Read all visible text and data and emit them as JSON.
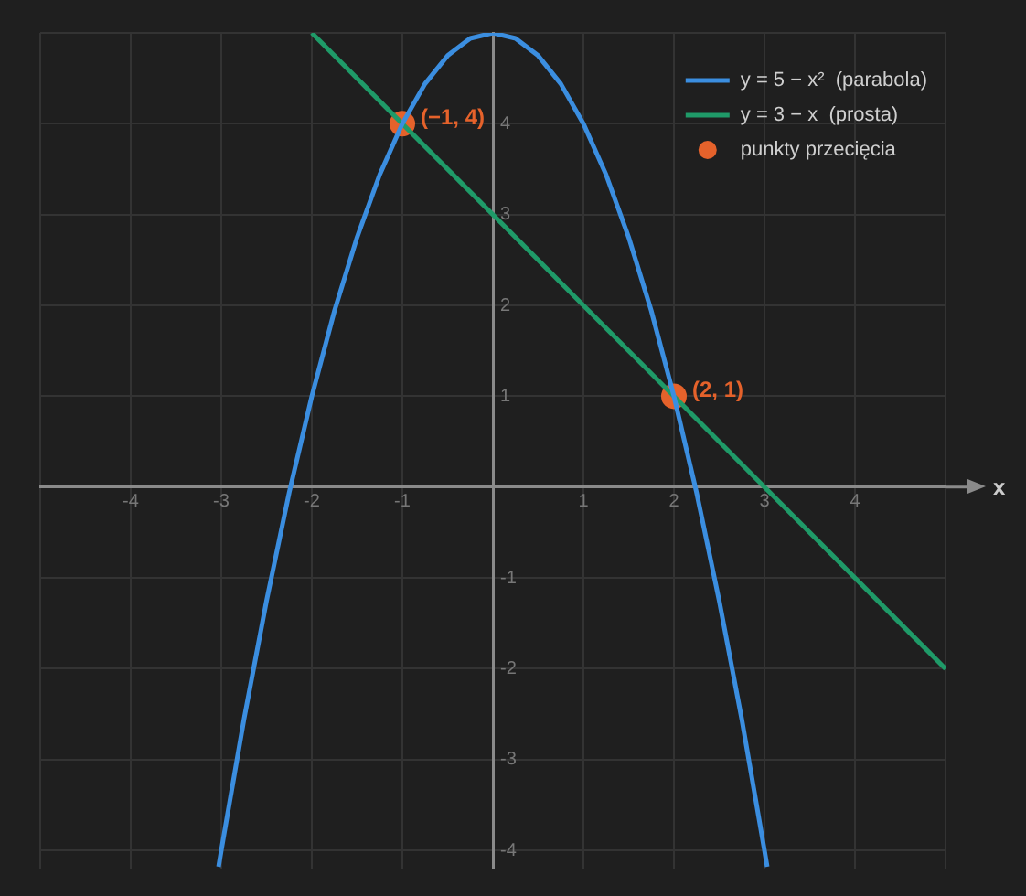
{
  "chart_data": {
    "type": "line",
    "xlabel": "x",
    "series": [
      {
        "name": "y = 5 − x²  (parabola)",
        "color": "#3b8ee0",
        "marker": "none",
        "x": [
          -3.03,
          -3,
          -2.75,
          -2.5,
          -2.25,
          -2,
          -1.75,
          -1.5,
          -1.25,
          -1,
          -0.75,
          -0.5,
          -0.25,
          0,
          0.25,
          0.5,
          0.75,
          1,
          1.25,
          1.5,
          1.75,
          2,
          2.25,
          2.5,
          2.75,
          3,
          3.03
        ],
        "values": [
          -4.18,
          -4,
          -2.56,
          -1.25,
          -0.06,
          1,
          1.94,
          2.75,
          3.44,
          4,
          4.44,
          4.75,
          4.94,
          5,
          4.94,
          4.75,
          4.44,
          4,
          3.44,
          2.75,
          1.94,
          1,
          -0.06,
          -1.25,
          -2.56,
          -4,
          -4.18
        ]
      },
      {
        "name": "y = 3 − x  (prosta)",
        "color": "#1f9a68",
        "marker": "none",
        "x": [
          -2,
          5
        ],
        "values": [
          5,
          -2
        ]
      },
      {
        "type": "scatter",
        "name": "punkty przecięcia",
        "color": "#e5622b",
        "marker": "circle",
        "x": [
          -1,
          2
        ],
        "values": [
          4,
          1
        ]
      }
    ],
    "xlim": [
      -5,
      5
    ],
    "ylim": [
      -4.2,
      5
    ],
    "xticks": [
      {
        "value": -5,
        "label": null
      },
      -4,
      -3,
      -2,
      -1,
      {
        "value": 0,
        "label": null
      },
      1,
      2,
      3,
      4,
      {
        "value": 5,
        "label": null
      }
    ],
    "yticks": [
      -4,
      -3,
      -2,
      -1,
      {
        "value": 0,
        "label": null
      },
      1,
      2,
      3,
      4,
      {
        "value": 5,
        "label": null
      }
    ],
    "grid": true,
    "legend": "top right",
    "annotations": [
      {
        "text": "(−1, 4)",
        "x": -1,
        "y": 4
      },
      {
        "text": "(2, 1)",
        "x": 2,
        "y": 1
      }
    ]
  }
}
